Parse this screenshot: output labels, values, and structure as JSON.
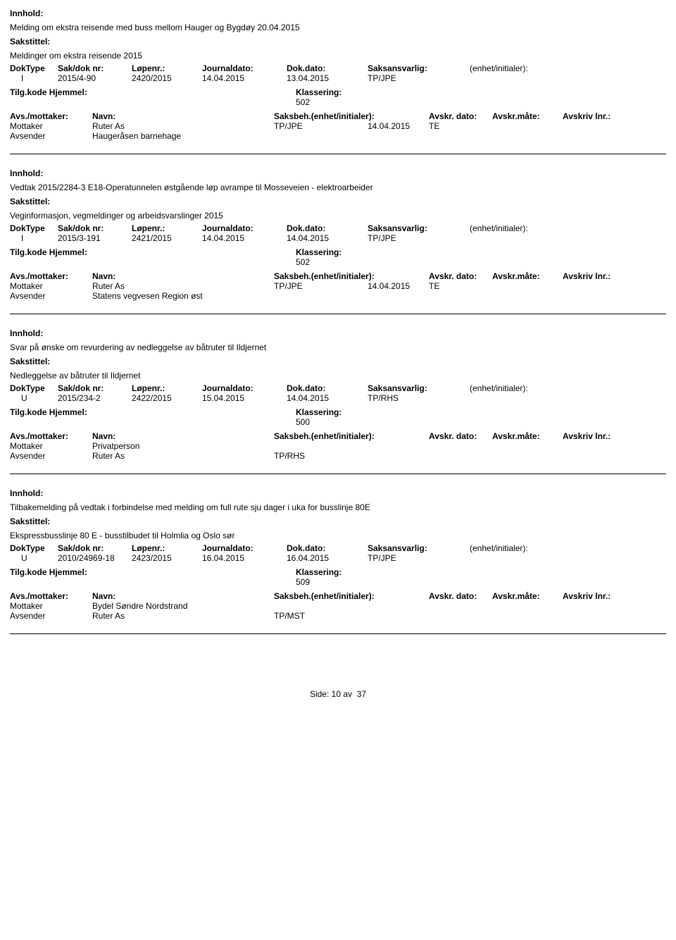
{
  "labels": {
    "innhold": "Innhold:",
    "sakstittel": "Sakstittel:",
    "doktype": "DokType",
    "sakdoknr": "Sak/dok nr:",
    "lopenr": "Løpenr.:",
    "journaldato": "Journaldato:",
    "dokdato": "Dok.dato:",
    "saksansvarlig": "Saksansvarlig:",
    "enhet": "(enhet/initialer):",
    "tilgkode": "Tilg.kode",
    "hjemmel": "Hjemmel:",
    "klassering": "Klassering:",
    "avsmottaker": "Avs./mottaker:",
    "navn": "Navn:",
    "saksbeh": "Saksbeh.(enhet/initialer):",
    "avskrdato": "Avskr. dato:",
    "avskrmate": "Avskr.måte:",
    "avskrivlnr": "Avskriv lnr.:",
    "mottaker": "Mottaker",
    "avsender": "Avsender",
    "side": "Side:",
    "av": "av"
  },
  "records": [
    {
      "innhold": "Melding om ekstra reisende med buss mellom Hauger og Bygdøy 20.04.2015",
      "sakstittel": "Meldinger om ekstra reisende 2015",
      "doktype": "I",
      "sakdoknr": "2015/4-90",
      "lopenr": "2420/2015",
      "journaldato": "14.04.2015",
      "dokdato": "13.04.2015",
      "saksansvarlig": "TP/JPE",
      "klassering": "502",
      "mottaker_navn": "Ruter As",
      "mottaker_saksbeh": "TP/JPE",
      "mottaker_avskrdato": "14.04.2015",
      "mottaker_avskrmate": "TE",
      "avsender_navn": "Haugeråsen barnehage",
      "avsender_saksbeh": ""
    },
    {
      "innhold": "Vedtak 2015/2284-3 E18-Operatunnelen østgående løp avrampe til Mosseveien - elektroarbeider",
      "sakstittel": "Veginformasjon, vegmeldinger og arbeidsvarslinger 2015",
      "doktype": "I",
      "sakdoknr": "2015/3-191",
      "lopenr": "2421/2015",
      "journaldato": "14.04.2015",
      "dokdato": "14.04.2015",
      "saksansvarlig": "TP/JPE",
      "klassering": "502",
      "mottaker_navn": "Ruter As",
      "mottaker_saksbeh": "TP/JPE",
      "mottaker_avskrdato": "14.04.2015",
      "mottaker_avskrmate": "TE",
      "avsender_navn": "Statens vegvesen Region øst",
      "avsender_saksbeh": ""
    },
    {
      "innhold": "Svar på ønske om revurdering av nedleggelse av båtruter til Ildjernet",
      "sakstittel": "Nedleggelse av båtruter til Ildjernet",
      "doktype": "U",
      "sakdoknr": "2015/234-2",
      "lopenr": "2422/2015",
      "journaldato": "15.04.2015",
      "dokdato": "14.04.2015",
      "saksansvarlig": "TP/RHS",
      "klassering": "500",
      "mottaker_navn": "Privatperson",
      "mottaker_saksbeh": "",
      "mottaker_avskrdato": "",
      "mottaker_avskrmate": "",
      "avsender_navn": "Ruter As",
      "avsender_saksbeh": "TP/RHS"
    },
    {
      "innhold": "Tilbakemelding på vedtak i forbindelse med melding om full rute sju dager i uka for busslinje 80E",
      "sakstittel": "Ekspressbusslinje 80 E - busstilbudet til Holmlia og Oslo sør",
      "doktype": "U",
      "sakdoknr": "2010/24969-18",
      "lopenr": "2423/2015",
      "journaldato": "16.04.2015",
      "dokdato": "16.04.2015",
      "saksansvarlig": "TP/JPE",
      "klassering": "509",
      "mottaker_navn": "Bydel Søndre Nordstrand",
      "mottaker_saksbeh": "",
      "mottaker_avskrdato": "",
      "mottaker_avskrmate": "",
      "avsender_navn": "Ruter As",
      "avsender_saksbeh": "TP/MST"
    }
  ],
  "page": {
    "current": "10",
    "total": "37"
  }
}
